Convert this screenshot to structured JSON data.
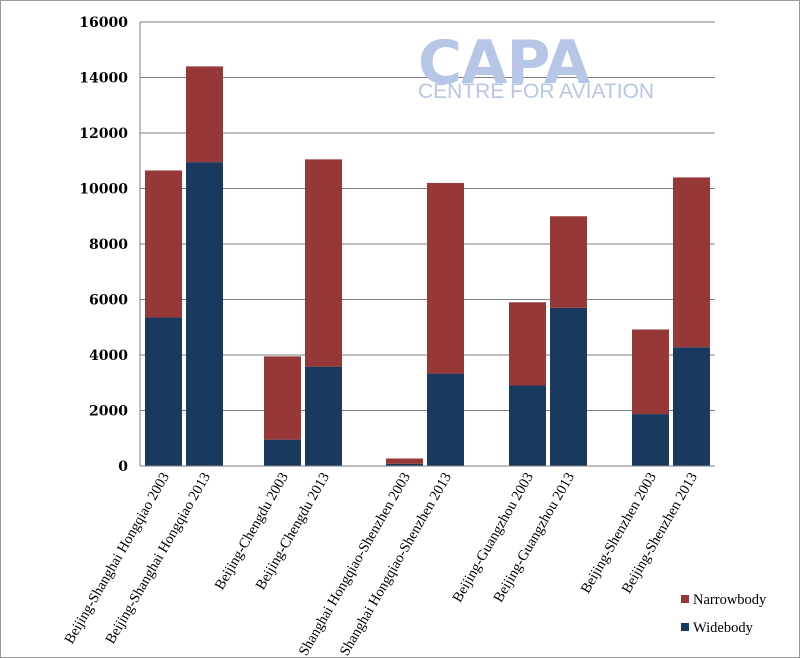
{
  "logo": {
    "wordmark": "CAPA",
    "tagline": "CENTRE FOR AVIATION"
  },
  "colors": {
    "narrowbody": "#963838",
    "widebody": "#193a5e",
    "grid": "#7f7f7f"
  },
  "chart_data": {
    "type": "bar",
    "stacked": true,
    "categories": [
      "Beijing-Shanghai Hongqiao 2003",
      "Beijing-Shanghai Hongqiao 2013",
      "Beijing-Chengdu 2003",
      "Beijing-Chengdu 2013",
      "Shanghai Hongqiao-Shenzhen 2003",
      "Shanghai Hongqiao-Shenzhen 2013",
      "Beijing-Guangzhou 2003",
      "Beijing-Guangzhou 2013",
      "Beijing-Shenzhen 2003",
      "Beijing-Shenzhen 2013"
    ],
    "groups": [
      [
        0,
        1
      ],
      [
        2,
        3
      ],
      [
        4,
        5
      ],
      [
        6,
        7
      ],
      [
        8,
        9
      ]
    ],
    "series": [
      {
        "name": "Widebody",
        "values": [
          5350,
          10950,
          950,
          3580,
          80,
          3330,
          2900,
          5700,
          1870,
          4280
        ]
      },
      {
        "name": "Narrowbody",
        "values": [
          5300,
          3450,
          3000,
          7470,
          190,
          6870,
          3000,
          3300,
          3050,
          6120
        ]
      }
    ],
    "totals": [
      10650,
      14400,
      3950,
      11050,
      270,
      10200,
      5900,
      9000,
      4920,
      10400
    ],
    "ylim": [
      0,
      16000
    ],
    "yticks": [
      0,
      2000,
      4000,
      6000,
      8000,
      10000,
      12000,
      14000,
      16000
    ],
    "grid": true,
    "legend": [
      "Narrowbody",
      "Widebody"
    ],
    "legend_position": "bottom-right"
  }
}
